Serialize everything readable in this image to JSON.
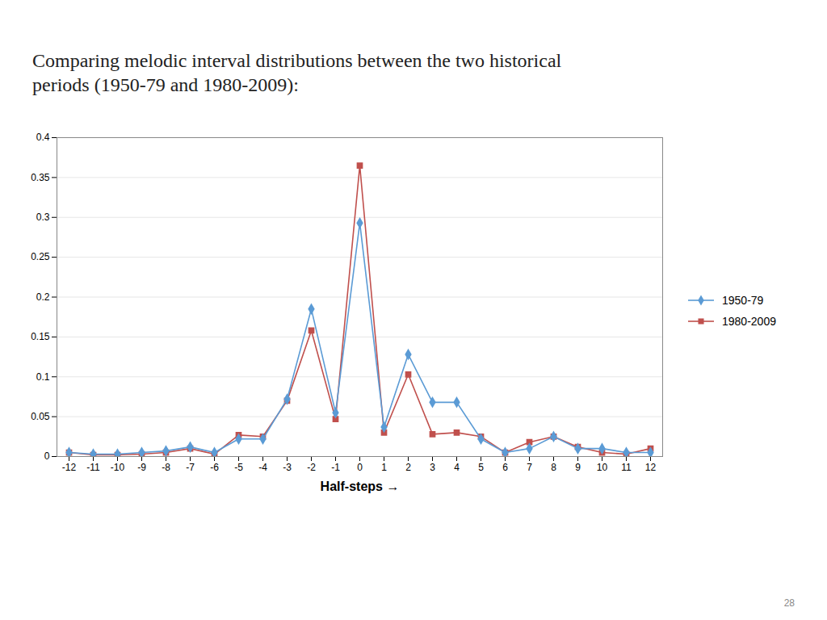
{
  "chart_data": {
    "type": "line",
    "title": "Comparing melodic interval distributions between the two historical\nperiods (1950-79 and 1980-2009):",
    "xlabel": "Half-steps",
    "x": [
      -12,
      -11,
      -10,
      -9,
      -8,
      -7,
      -6,
      -5,
      -4,
      -3,
      -2,
      -1,
      0,
      1,
      2,
      3,
      4,
      5,
      6,
      7,
      8,
      9,
      10,
      11,
      12
    ],
    "series": [
      {
        "name": "1950-79",
        "color": "#5B9BD5",
        "marker": "diamond",
        "line_style": "solid",
        "values": [
          0.005,
          0.003,
          0.003,
          0.005,
          0.007,
          0.012,
          0.005,
          0.022,
          0.022,
          0.072,
          0.185,
          0.055,
          0.293,
          0.037,
          0.128,
          0.068,
          0.068,
          0.022,
          0.005,
          0.01,
          0.025,
          0.01,
          0.01,
          0.005,
          0.005
        ]
      },
      {
        "name": "1980-2009",
        "color": "#C0504D",
        "marker": "square",
        "line_style": "solid",
        "values": [
          0.005,
          0.002,
          0.002,
          0.003,
          0.005,
          0.01,
          0.003,
          0.027,
          0.025,
          0.07,
          0.158,
          0.047,
          0.365,
          0.03,
          0.103,
          0.028,
          0.03,
          0.025,
          0.005,
          0.018,
          0.025,
          0.012,
          0.005,
          0.003,
          0.01
        ]
      }
    ],
    "xlim": [
      -12.5,
      12.5
    ],
    "ylim": [
      0,
      0.4
    ],
    "xticks": [
      -12,
      -11,
      -10,
      -9,
      -8,
      -7,
      -6,
      -5,
      -4,
      -3,
      -2,
      -1,
      0,
      1,
      2,
      3,
      4,
      5,
      6,
      7,
      8,
      9,
      10,
      11,
      12
    ],
    "yticks": [
      0,
      0.05,
      0.1,
      0.15,
      0.2,
      0.25,
      0.3,
      0.35,
      0.4
    ],
    "grid": true,
    "legend": "right",
    "annotations": [
      "28"
    ]
  }
}
